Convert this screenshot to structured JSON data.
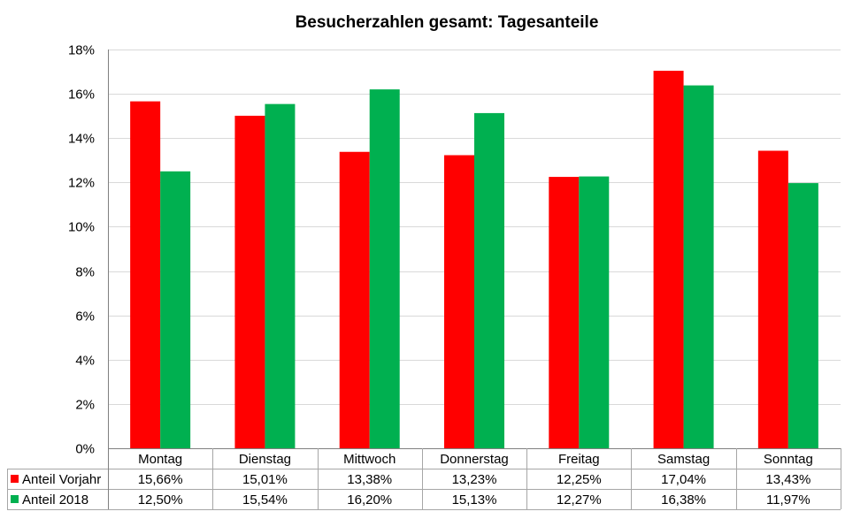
{
  "chart_data": {
    "type": "bar",
    "title": "Besucherzahlen gesamt: Tagesanteile",
    "categories": [
      "Montag",
      "Dienstag",
      "Mittwoch",
      "Donnerstag",
      "Freitag",
      "Samstag",
      "Sonntag"
    ],
    "series": [
      {
        "name": "Anteil Vorjahr",
        "color": "#ff0000",
        "values": [
          15.66,
          15.01,
          13.38,
          13.23,
          12.25,
          17.04,
          13.43
        ],
        "labels": [
          "15,66%",
          "15,01%",
          "13,38%",
          "13,23%",
          "12,25%",
          "17,04%",
          "13,43%"
        ]
      },
      {
        "name": "Anteil 2018",
        "color": "#00b050",
        "values": [
          12.5,
          15.54,
          16.2,
          15.13,
          12.27,
          16.38,
          11.97
        ],
        "labels": [
          "12,50%",
          "15,54%",
          "16,20%",
          "15,13%",
          "12,27%",
          "16,38%",
          "11,97%"
        ]
      }
    ],
    "ylim": [
      0,
      18
    ],
    "yticks": [
      0,
      2,
      4,
      6,
      8,
      10,
      12,
      14,
      16,
      18
    ],
    "ytick_labels": [
      "0%",
      "2%",
      "4%",
      "6%",
      "8%",
      "10%",
      "12%",
      "14%",
      "16%",
      "18%"
    ],
    "xlabel": "",
    "ylabel": "",
    "grid": true,
    "legend": "data-table",
    "gridline_color": "#d9d9d9"
  }
}
